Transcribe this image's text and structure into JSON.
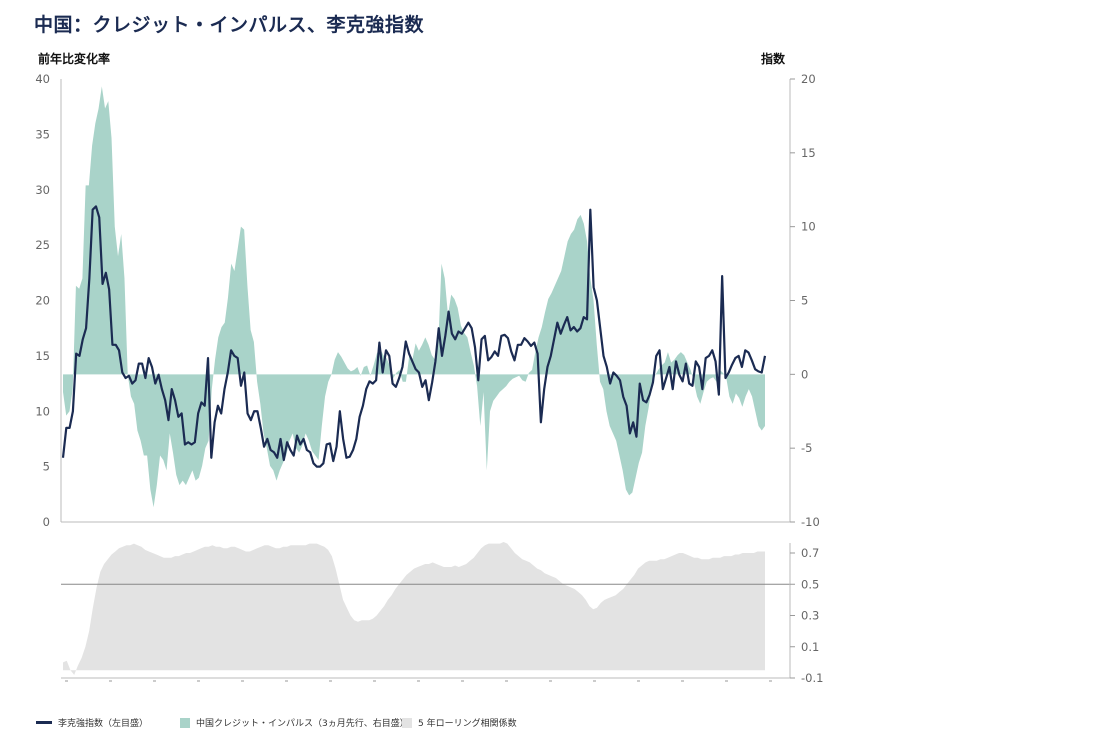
{
  "title": "中国：クレジット・インパルス、李克強指数",
  "chart_data": {
    "type": "line",
    "top_panel": {
      "left_axis_label": "前年比変化率",
      "right_axis_label": "指数",
      "left_ylim": [
        0,
        40
      ],
      "left_ticks": [
        "0",
        "5",
        "10",
        "15",
        "20",
        "25",
        "30",
        "35",
        "40"
      ],
      "right_ylim": [
        -10,
        20
      ],
      "right_ticks": [
        "-10",
        "-5",
        "0",
        "5",
        "10",
        "15",
        "20"
      ],
      "series": [
        {
          "name": "李克強指数（左目盛）",
          "axis": "left",
          "color": "#1b2b52",
          "values": [
            5.8,
            8.5,
            8.5,
            10,
            15.2,
            15,
            16.5,
            17.5,
            22,
            28.2,
            28.5,
            27.5,
            21.5,
            22.5,
            21,
            16,
            16,
            15.5,
            13.5,
            13,
            13.2,
            12.5,
            12.8,
            14.3,
            14.3,
            13,
            14.8,
            14,
            12.5,
            13.3,
            12,
            11,
            9.2,
            12,
            11,
            9.5,
            9.8,
            7,
            7.2,
            7,
            7.2,
            9.8,
            10.8,
            10.5,
            14.8,
            5.8,
            9,
            10.5,
            9.8,
            12,
            13.5,
            15.5,
            15,
            14.8,
            12.3,
            13.5,
            9.8,
            9.2,
            10,
            10,
            8.5,
            6.8,
            7.5,
            6.5,
            6.3,
            5.8,
            7.5,
            5.6,
            7.2,
            6.5,
            6,
            7.8,
            7,
            7.5,
            6.5,
            6.3,
            5.3,
            5,
            5,
            5.3,
            7,
            7.1,
            5.5,
            6.8,
            10,
            7.5,
            5.8,
            5.9,
            6.5,
            7.5,
            9.5,
            10.5,
            12,
            12.7,
            12.5,
            12.8,
            16.2,
            13.5,
            15.5,
            15,
            12.5,
            12.2,
            13,
            14,
            16.3,
            15.2,
            14.5,
            13.8,
            13.5,
            12.2,
            12.8,
            11,
            12.6,
            14.5,
            17.5,
            15,
            16.8,
            19,
            17,
            16.5,
            17.2,
            17,
            17.5,
            18,
            17.5,
            15.8,
            12.8,
            16.5,
            16.8,
            14.6,
            14.9,
            15.4,
            15,
            16.8,
            16.9,
            16.6,
            15.4,
            14.6,
            16,
            16,
            16.6,
            16.3,
            15.9,
            16.2,
            15.2,
            9,
            12,
            14,
            15,
            16.5,
            18,
            17,
            17.8,
            18.5,
            17.3,
            17.6,
            17.2,
            17.5,
            18.5,
            18.3,
            28.2,
            21.2,
            20,
            17.5,
            15,
            14,
            12.5,
            13.5,
            13.2,
            12.8,
            11.3,
            10.5,
            8,
            9,
            7.7,
            12.5,
            11,
            10.8,
            11.5,
            12.6,
            15,
            15.5,
            12,
            13,
            14,
            12,
            14.5,
            13.3,
            12.7,
            14.3,
            12.5,
            12.3,
            14.5,
            14,
            12,
            14.8,
            15,
            15.5,
            14.5,
            11.5,
            22.2,
            13,
            13.5,
            14.2,
            14.8,
            15,
            14,
            15.5,
            15.3,
            14.6,
            13.8,
            13.6,
            13.5,
            15
          ]
        },
        {
          "name": "中国クレジット・インパルス（3ヵ月先行、右目盛）",
          "axis": "right",
          "color": "#a9d3c9",
          "values": [
            -1.2,
            -2.8,
            -2.5,
            -1,
            6,
            5.8,
            6.5,
            12.8,
            12.8,
            15.5,
            17,
            18,
            19.5,
            18,
            18.5,
            16,
            10,
            8,
            9.5,
            6.5,
            0,
            -1.5,
            -2,
            -3.8,
            -4.5,
            -5.5,
            -5.5,
            -7.8,
            -9,
            -7.5,
            -5.5,
            -5.8,
            -6.5,
            -4,
            -5.3,
            -6.8,
            -7.5,
            -7.2,
            -7.5,
            -7,
            -6.5,
            -7.2,
            -7,
            -6.2,
            -5,
            -4.5,
            -1,
            1,
            2.5,
            3.2,
            3.5,
            5.2,
            7.5,
            7,
            8.5,
            10,
            9.8,
            6,
            3,
            2.2,
            -0.5,
            -2,
            -4,
            -5,
            -6.2,
            -6.5,
            -7.2,
            -6.5,
            -6,
            -5.5,
            -4.5,
            -4,
            -5,
            -5.3,
            -4.8,
            -4,
            -4.5,
            -5.2,
            -5.5,
            -5.8,
            -3.5,
            -1.5,
            -0.5,
            0,
            1,
            1.5,
            1.2,
            0.8,
            0.4,
            0.2,
            0.3,
            0.5,
            -0.1,
            0.5,
            0.6,
            -0.1,
            0.6,
            1.4,
            1.8,
            1.3,
            1.1,
            0.6,
            -0.3,
            0.1,
            0.3,
            -0.5,
            -0.5,
            1.2,
            1,
            2.1,
            1.6,
            2,
            2.5,
            2,
            1.3,
            1,
            2,
            7.5,
            6.5,
            4,
            5.4,
            5.1,
            4.5,
            3.3,
            2.8,
            2.5,
            1.5,
            0.6,
            -0.8,
            -3.5,
            -1.2,
            -6.5,
            -2.5,
            -1.8,
            -1.5,
            -1.2,
            -1,
            -0.8,
            -0.5,
            -0.3,
            -0.2,
            -0.1,
            -0.4,
            -0.5,
            0.1,
            0.3,
            1.5,
            2.5,
            3.2,
            4.2,
            5.1,
            5.5,
            6,
            6.5,
            7,
            8,
            9,
            9.5,
            9.8,
            10.5,
            10.8,
            10.2,
            9,
            6.5,
            5,
            2,
            -0.5,
            -1,
            -2.5,
            -3.5,
            -4,
            -4.5,
            -5.5,
            -6.5,
            -7.8,
            -8.2,
            -8,
            -7,
            -6,
            -5.3,
            -3.5,
            -2.3,
            -0.8,
            -0.1,
            0.3,
            0.6,
            0.8,
            1.5,
            0.8,
            1,
            1.3,
            1.5,
            1.3,
            0.8,
            0.3,
            -0.5,
            -1.5,
            -2,
            -1.2,
            -0.5,
            -0.3,
            -0.2,
            -0.5,
            0.3,
            0.1,
            -0.2,
            -1.5,
            -2,
            -1.3,
            -1.6,
            -2.2,
            -1.5,
            -1,
            -1.5,
            -2.5,
            -3.5,
            -3.8,
            -3.5
          ]
        }
      ]
    },
    "bottom_panel": {
      "ylim": [
        -0.1,
        0.7
      ],
      "ticks": [
        "-0.1",
        "0.1",
        "0.3",
        "0.5",
        "0.7"
      ],
      "reference_line": 0.5,
      "series": [
        {
          "name": "5 年ローリング相関係数",
          "type": "area",
          "color": "#e3e3e3",
          "values": [
            0,
            0.01,
            -0.05,
            -0.08,
            -0.02,
            0.03,
            0.1,
            0.2,
            0.35,
            0.48,
            0.58,
            0.63,
            0.66,
            0.69,
            0.71,
            0.73,
            0.74,
            0.75,
            0.75,
            0.76,
            0.75,
            0.74,
            0.72,
            0.71,
            0.7,
            0.69,
            0.68,
            0.67,
            0.67,
            0.67,
            0.68,
            0.68,
            0.69,
            0.7,
            0.7,
            0.71,
            0.72,
            0.73,
            0.74,
            0.74,
            0.75,
            0.74,
            0.74,
            0.73,
            0.73,
            0.74,
            0.74,
            0.73,
            0.72,
            0.71,
            0.71,
            0.72,
            0.73,
            0.74,
            0.75,
            0.75,
            0.74,
            0.73,
            0.73,
            0.74,
            0.74,
            0.75,
            0.75,
            0.75,
            0.75,
            0.75,
            0.76,
            0.76,
            0.76,
            0.75,
            0.74,
            0.72,
            0.68,
            0.6,
            0.5,
            0.4,
            0.35,
            0.3,
            0.27,
            0.26,
            0.27,
            0.27,
            0.27,
            0.28,
            0.3,
            0.33,
            0.36,
            0.4,
            0.43,
            0.47,
            0.5,
            0.53,
            0.56,
            0.58,
            0.6,
            0.61,
            0.62,
            0.63,
            0.63,
            0.64,
            0.63,
            0.62,
            0.61,
            0.61,
            0.61,
            0.62,
            0.61,
            0.62,
            0.63,
            0.65,
            0.67,
            0.7,
            0.73,
            0.75,
            0.76,
            0.76,
            0.76,
            0.76,
            0.77,
            0.76,
            0.73,
            0.7,
            0.68,
            0.66,
            0.65,
            0.64,
            0.62,
            0.6,
            0.59,
            0.57,
            0.56,
            0.55,
            0.54,
            0.52,
            0.5,
            0.49,
            0.48,
            0.47,
            0.45,
            0.43,
            0.4,
            0.36,
            0.34,
            0.35,
            0.38,
            0.4,
            0.41,
            0.42,
            0.43,
            0.45,
            0.47,
            0.5,
            0.53,
            0.56,
            0.6,
            0.62,
            0.64,
            0.65,
            0.65,
            0.65,
            0.66,
            0.66,
            0.67,
            0.68,
            0.69,
            0.7,
            0.7,
            0.69,
            0.68,
            0.67,
            0.67,
            0.66,
            0.66,
            0.66,
            0.67,
            0.67,
            0.67,
            0.68,
            0.68,
            0.68,
            0.69,
            0.69,
            0.7,
            0.7,
            0.7,
            0.7,
            0.71,
            0.71,
            0.71
          ]
        }
      ]
    },
    "legend": [
      {
        "label": "李克強指数（左目盛）",
        "color": "#1b2b52",
        "kind": "line"
      },
      {
        "label": "中国クレジット・インパルス（3ヵ月先行、右目盛）",
        "color": "#a9d3c9",
        "kind": "box"
      },
      {
        "label": "5 年ローリング相関係数",
        "color": "#e3e3e3",
        "kind": "box"
      }
    ]
  }
}
